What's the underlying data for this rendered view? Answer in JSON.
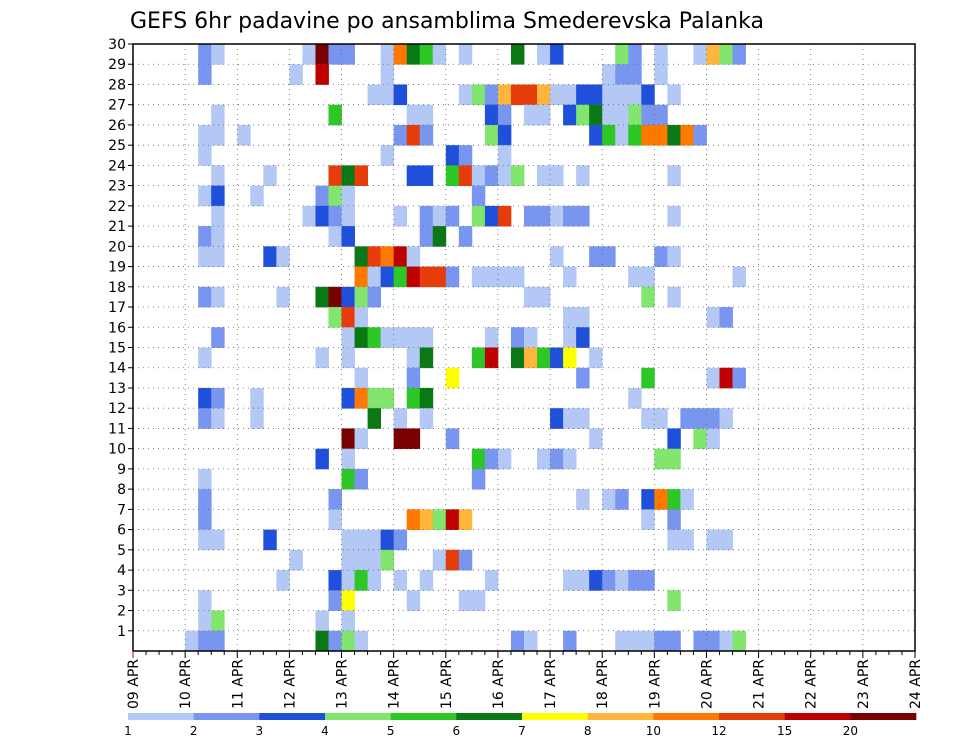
{
  "chart_data": {
    "type": "heatmap",
    "title": "GEFS 6hr padavine po ansamblima Smederevska Palanka",
    "y_ticks": [
      "1",
      "2",
      "3",
      "4",
      "5",
      "6",
      "7",
      "8",
      "9",
      "10",
      "11",
      "12",
      "13",
      "14",
      "15",
      "16",
      "17",
      "18",
      "19",
      "20",
      "21",
      "22",
      "23",
      "24",
      "25",
      "26",
      "27",
      "28",
      "29",
      "30"
    ],
    "x_ticks": [
      "09 APR",
      "10 APR",
      "11 APR",
      "12 APR",
      "13 APR",
      "14 APR",
      "15 APR",
      "16 APR",
      "17 APR",
      "18 APR",
      "19 APR",
      "20 APR",
      "21 APR",
      "22 APR",
      "23 APR",
      "24 APR"
    ],
    "x_steps_per_day": 4,
    "x_total_steps": 60,
    "y_range": [
      0,
      30
    ],
    "grid": "dotted",
    "colorbar": {
      "levels": [
        "1",
        "2",
        "3",
        "4",
        "5",
        "6",
        "7",
        "8",
        "10",
        "12",
        "15",
        "20"
      ],
      "colors": [
        "#b4c8f5",
        "#7896f0",
        "#1e50dc",
        "#82e66e",
        "#2dc828",
        "#0a7814",
        "#ffff00",
        "#ffb43c",
        "#ff7800",
        "#e63c0a",
        "#be0000",
        "#780000"
      ]
    },
    "cells": [
      [
        5,
        30,
        2
      ],
      [
        6,
        30,
        1
      ],
      [
        13,
        30,
        1
      ],
      [
        14,
        30,
        12
      ],
      [
        15,
        30,
        2
      ],
      [
        16,
        30,
        2
      ],
      [
        19,
        30,
        1
      ],
      [
        20,
        30,
        9
      ],
      [
        21,
        30,
        6
      ],
      [
        22,
        30,
        5
      ],
      [
        23,
        30,
        1
      ],
      [
        25,
        30,
        1
      ],
      [
        29,
        30,
        6
      ],
      [
        31,
        30,
        1
      ],
      [
        32,
        30,
        3
      ],
      [
        37,
        30,
        4
      ],
      [
        38,
        30,
        2
      ],
      [
        40,
        30,
        1
      ],
      [
        43,
        30,
        1
      ],
      [
        44,
        30,
        8
      ],
      [
        45,
        30,
        4
      ],
      [
        46,
        30,
        2
      ],
      [
        5,
        29,
        2
      ],
      [
        12,
        29,
        1
      ],
      [
        14,
        29,
        11
      ],
      [
        19,
        29,
        1
      ],
      [
        36,
        29,
        1
      ],
      [
        37,
        29,
        2
      ],
      [
        38,
        29,
        2
      ],
      [
        40,
        29,
        1
      ],
      [
        18,
        28,
        1
      ],
      [
        19,
        28,
        1
      ],
      [
        20,
        28,
        3
      ],
      [
        25,
        28,
        1
      ],
      [
        26,
        28,
        4
      ],
      [
        27,
        28,
        2
      ],
      [
        28,
        28,
        8
      ],
      [
        29,
        28,
        10
      ],
      [
        30,
        28,
        10
      ],
      [
        31,
        28,
        8
      ],
      [
        32,
        28,
        1
      ],
      [
        33,
        28,
        1
      ],
      [
        34,
        28,
        3
      ],
      [
        35,
        28,
        3
      ],
      [
        36,
        28,
        1
      ],
      [
        37,
        28,
        1
      ],
      [
        38,
        28,
        1
      ],
      [
        39,
        28,
        3
      ],
      [
        41,
        28,
        1
      ],
      [
        6,
        27,
        1
      ],
      [
        15,
        27,
        5
      ],
      [
        21,
        27,
        1
      ],
      [
        22,
        27,
        1
      ],
      [
        27,
        27,
        3
      ],
      [
        28,
        27,
        2
      ],
      [
        30,
        27,
        1
      ],
      [
        31,
        27,
        1
      ],
      [
        33,
        27,
        3
      ],
      [
        34,
        27,
        4
      ],
      [
        35,
        27,
        6
      ],
      [
        36,
        27,
        1
      ],
      [
        37,
        27,
        1
      ],
      [
        38,
        27,
        4
      ],
      [
        39,
        27,
        2
      ],
      [
        40,
        27,
        2
      ],
      [
        5,
        26,
        1
      ],
      [
        6,
        26,
        1
      ],
      [
        8,
        26,
        1
      ],
      [
        20,
        26,
        2
      ],
      [
        21,
        26,
        10
      ],
      [
        22,
        26,
        2
      ],
      [
        27,
        26,
        4
      ],
      [
        28,
        26,
        3
      ],
      [
        35,
        26,
        3
      ],
      [
        36,
        26,
        5
      ],
      [
        37,
        26,
        1
      ],
      [
        38,
        26,
        5
      ],
      [
        39,
        26,
        9
      ],
      [
        40,
        26,
        9
      ],
      [
        41,
        26,
        6
      ],
      [
        42,
        26,
        9
      ],
      [
        43,
        26,
        2
      ],
      [
        5,
        25,
        1
      ],
      [
        19,
        25,
        1
      ],
      [
        24,
        25,
        3
      ],
      [
        25,
        25,
        2
      ],
      [
        28,
        25,
        1
      ],
      [
        6,
        24,
        1
      ],
      [
        10,
        24,
        1
      ],
      [
        15,
        24,
        10
      ],
      [
        16,
        24,
        6
      ],
      [
        17,
        24,
        10
      ],
      [
        21,
        24,
        3
      ],
      [
        22,
        24,
        3
      ],
      [
        24,
        24,
        5
      ],
      [
        25,
        24,
        10
      ],
      [
        26,
        24,
        1
      ],
      [
        27,
        24,
        2
      ],
      [
        28,
        24,
        1
      ],
      [
        29,
        24,
        4
      ],
      [
        31,
        24,
        1
      ],
      [
        32,
        24,
        1
      ],
      [
        34,
        24,
        1
      ],
      [
        41,
        24,
        1
      ],
      [
        5,
        23,
        1
      ],
      [
        6,
        23,
        3
      ],
      [
        9,
        23,
        1
      ],
      [
        14,
        23,
        2
      ],
      [
        15,
        23,
        4
      ],
      [
        16,
        23,
        1
      ],
      [
        26,
        23,
        2
      ],
      [
        6,
        22,
        1
      ],
      [
        13,
        22,
        1
      ],
      [
        14,
        22,
        3
      ],
      [
        15,
        22,
        2
      ],
      [
        16,
        22,
        1
      ],
      [
        20,
        22,
        1
      ],
      [
        22,
        22,
        2
      ],
      [
        23,
        22,
        1
      ],
      [
        24,
        22,
        2
      ],
      [
        26,
        22,
        4
      ],
      [
        27,
        22,
        3
      ],
      [
        28,
        22,
        10
      ],
      [
        30,
        22,
        2
      ],
      [
        31,
        22,
        2
      ],
      [
        32,
        22,
        1
      ],
      [
        33,
        22,
        2
      ],
      [
        34,
        22,
        2
      ],
      [
        41,
        22,
        1
      ],
      [
        5,
        21,
        2
      ],
      [
        6,
        21,
        1
      ],
      [
        15,
        21,
        1
      ],
      [
        16,
        21,
        3
      ],
      [
        22,
        21,
        2
      ],
      [
        23,
        21,
        6
      ],
      [
        25,
        21,
        2
      ],
      [
        5,
        20,
        1
      ],
      [
        6,
        20,
        1
      ],
      [
        10,
        20,
        3
      ],
      [
        11,
        20,
        1
      ],
      [
        17,
        20,
        6
      ],
      [
        18,
        20,
        10
      ],
      [
        19,
        20,
        9
      ],
      [
        20,
        20,
        11
      ],
      [
        21,
        20,
        1
      ],
      [
        32,
        20,
        1
      ],
      [
        35,
        20,
        2
      ],
      [
        36,
        20,
        2
      ],
      [
        40,
        20,
        2
      ],
      [
        41,
        20,
        1
      ],
      [
        17,
        19,
        9
      ],
      [
        18,
        19,
        1
      ],
      [
        19,
        19,
        3
      ],
      [
        20,
        19,
        5
      ],
      [
        21,
        19,
        11
      ],
      [
        22,
        19,
        10
      ],
      [
        23,
        19,
        10
      ],
      [
        24,
        19,
        2
      ],
      [
        26,
        19,
        1
      ],
      [
        27,
        19,
        1
      ],
      [
        28,
        19,
        1
      ],
      [
        29,
        19,
        1
      ],
      [
        33,
        19,
        1
      ],
      [
        38,
        19,
        1
      ],
      [
        39,
        19,
        1
      ],
      [
        46,
        19,
        1
      ],
      [
        5,
        18,
        2
      ],
      [
        6,
        18,
        1
      ],
      [
        11,
        18,
        1
      ],
      [
        14,
        18,
        6
      ],
      [
        15,
        18,
        12
      ],
      [
        16,
        18,
        3
      ],
      [
        17,
        18,
        4
      ],
      [
        18,
        18,
        2
      ],
      [
        30,
        18,
        1
      ],
      [
        31,
        18,
        1
      ],
      [
        39,
        18,
        4
      ],
      [
        41,
        18,
        1
      ],
      [
        15,
        17,
        4
      ],
      [
        16,
        17,
        10
      ],
      [
        17,
        17,
        1
      ],
      [
        33,
        17,
        1
      ],
      [
        34,
        17,
        1
      ],
      [
        44,
        17,
        1
      ],
      [
        45,
        17,
        2
      ],
      [
        6,
        16,
        2
      ],
      [
        16,
        16,
        1
      ],
      [
        17,
        16,
        6
      ],
      [
        18,
        16,
        5
      ],
      [
        19,
        16,
        1
      ],
      [
        20,
        16,
        1
      ],
      [
        21,
        16,
        1
      ],
      [
        22,
        16,
        1
      ],
      [
        27,
        16,
        1
      ],
      [
        29,
        16,
        2
      ],
      [
        30,
        16,
        1
      ],
      [
        33,
        16,
        1
      ],
      [
        34,
        16,
        3
      ],
      [
        5,
        15,
        1
      ],
      [
        14,
        15,
        1
      ],
      [
        16,
        15,
        1
      ],
      [
        21,
        15,
        1
      ],
      [
        22,
        15,
        6
      ],
      [
        26,
        15,
        5
      ],
      [
        27,
        15,
        11
      ],
      [
        29,
        15,
        6
      ],
      [
        30,
        15,
        8
      ],
      [
        31,
        15,
        5
      ],
      [
        32,
        15,
        3
      ],
      [
        33,
        15,
        7
      ],
      [
        35,
        15,
        1
      ],
      [
        17,
        14,
        1
      ],
      [
        21,
        14,
        2
      ],
      [
        24,
        14,
        7
      ],
      [
        34,
        14,
        2
      ],
      [
        39,
        14,
        5
      ],
      [
        44,
        14,
        1
      ],
      [
        45,
        14,
        11
      ],
      [
        46,
        14,
        2
      ],
      [
        5,
        13,
        3
      ],
      [
        6,
        13,
        2
      ],
      [
        9,
        13,
        1
      ],
      [
        16,
        13,
        3
      ],
      [
        17,
        13,
        9
      ],
      [
        18,
        13,
        4
      ],
      [
        19,
        13,
        4
      ],
      [
        21,
        13,
        5
      ],
      [
        22,
        13,
        6
      ],
      [
        38,
        13,
        1
      ],
      [
        5,
        12,
        2
      ],
      [
        6,
        12,
        1
      ],
      [
        9,
        12,
        1
      ],
      [
        18,
        12,
        6
      ],
      [
        20,
        12,
        1
      ],
      [
        22,
        12,
        1
      ],
      [
        32,
        12,
        3
      ],
      [
        33,
        12,
        1
      ],
      [
        34,
        12,
        1
      ],
      [
        39,
        12,
        1
      ],
      [
        40,
        12,
        1
      ],
      [
        42,
        12,
        2
      ],
      [
        43,
        12,
        2
      ],
      [
        44,
        12,
        2
      ],
      [
        45,
        12,
        1
      ],
      [
        16,
        11,
        12
      ],
      [
        17,
        11,
        1
      ],
      [
        20,
        11,
        12
      ],
      [
        21,
        11,
        12
      ],
      [
        24,
        11,
        2
      ],
      [
        35,
        11,
        1
      ],
      [
        41,
        11,
        3
      ],
      [
        43,
        11,
        4
      ],
      [
        44,
        11,
        1
      ],
      [
        14,
        10,
        3
      ],
      [
        16,
        10,
        1
      ],
      [
        26,
        10,
        5
      ],
      [
        27,
        10,
        2
      ],
      [
        28,
        10,
        1
      ],
      [
        31,
        10,
        1
      ],
      [
        32,
        10,
        2
      ],
      [
        33,
        10,
        1
      ],
      [
        40,
        10,
        4
      ],
      [
        41,
        10,
        4
      ],
      [
        5,
        9,
        1
      ],
      [
        16,
        9,
        5
      ],
      [
        17,
        9,
        2
      ],
      [
        26,
        9,
        2
      ],
      [
        5,
        8,
        2
      ],
      [
        15,
        8,
        2
      ],
      [
        34,
        8,
        1
      ],
      [
        36,
        8,
        1
      ],
      [
        37,
        8,
        2
      ],
      [
        39,
        8,
        3
      ],
      [
        40,
        8,
        9
      ],
      [
        41,
        8,
        5
      ],
      [
        42,
        8,
        1
      ],
      [
        5,
        7,
        2
      ],
      [
        15,
        7,
        1
      ],
      [
        21,
        7,
        9
      ],
      [
        22,
        7,
        8
      ],
      [
        23,
        7,
        4
      ],
      [
        24,
        7,
        11
      ],
      [
        25,
        7,
        8
      ],
      [
        39,
        7,
        1
      ],
      [
        41,
        7,
        2
      ],
      [
        5,
        6,
        1
      ],
      [
        6,
        6,
        1
      ],
      [
        10,
        6,
        3
      ],
      [
        16,
        6,
        1
      ],
      [
        17,
        6,
        1
      ],
      [
        18,
        6,
        1
      ],
      [
        19,
        6,
        3
      ],
      [
        20,
        6,
        2
      ],
      [
        41,
        6,
        1
      ],
      [
        42,
        6,
        1
      ],
      [
        44,
        6,
        1
      ],
      [
        45,
        6,
        1
      ],
      [
        12,
        5,
        1
      ],
      [
        16,
        5,
        1
      ],
      [
        17,
        5,
        1
      ],
      [
        18,
        5,
        1
      ],
      [
        19,
        5,
        4
      ],
      [
        23,
        5,
        1
      ],
      [
        24,
        5,
        10
      ],
      [
        25,
        5,
        2
      ],
      [
        11,
        4,
        1
      ],
      [
        15,
        4,
        3
      ],
      [
        16,
        4,
        1
      ],
      [
        17,
        4,
        5
      ],
      [
        18,
        4,
        1
      ],
      [
        20,
        4,
        1
      ],
      [
        22,
        4,
        1
      ],
      [
        27,
        4,
        1
      ],
      [
        33,
        4,
        1
      ],
      [
        34,
        4,
        1
      ],
      [
        35,
        4,
        3
      ],
      [
        36,
        4,
        2
      ],
      [
        37,
        4,
        1
      ],
      [
        38,
        4,
        2
      ],
      [
        39,
        4,
        2
      ],
      [
        5,
        3,
        1
      ],
      [
        15,
        3,
        2
      ],
      [
        16,
        3,
        7
      ],
      [
        21,
        3,
        1
      ],
      [
        25,
        3,
        1
      ],
      [
        26,
        3,
        1
      ],
      [
        41,
        3,
        4
      ],
      [
        5,
        2,
        1
      ],
      [
        6,
        2,
        4
      ],
      [
        14,
        2,
        1
      ],
      [
        16,
        2,
        1
      ],
      [
        4,
        1,
        1
      ],
      [
        5,
        1,
        2
      ],
      [
        6,
        1,
        2
      ],
      [
        14,
        1,
        6
      ],
      [
        15,
        1,
        2
      ],
      [
        16,
        1,
        4
      ],
      [
        17,
        1,
        1
      ],
      [
        29,
        1,
        2
      ],
      [
        30,
        1,
        1
      ],
      [
        33,
        1,
        2
      ],
      [
        37,
        1,
        1
      ],
      [
        38,
        1,
        1
      ],
      [
        39,
        1,
        1
      ],
      [
        40,
        1,
        2
      ],
      [
        41,
        1,
        2
      ],
      [
        43,
        1,
        2
      ],
      [
        44,
        1,
        2
      ],
      [
        45,
        1,
        1
      ],
      [
        46,
        1,
        4
      ]
    ]
  }
}
